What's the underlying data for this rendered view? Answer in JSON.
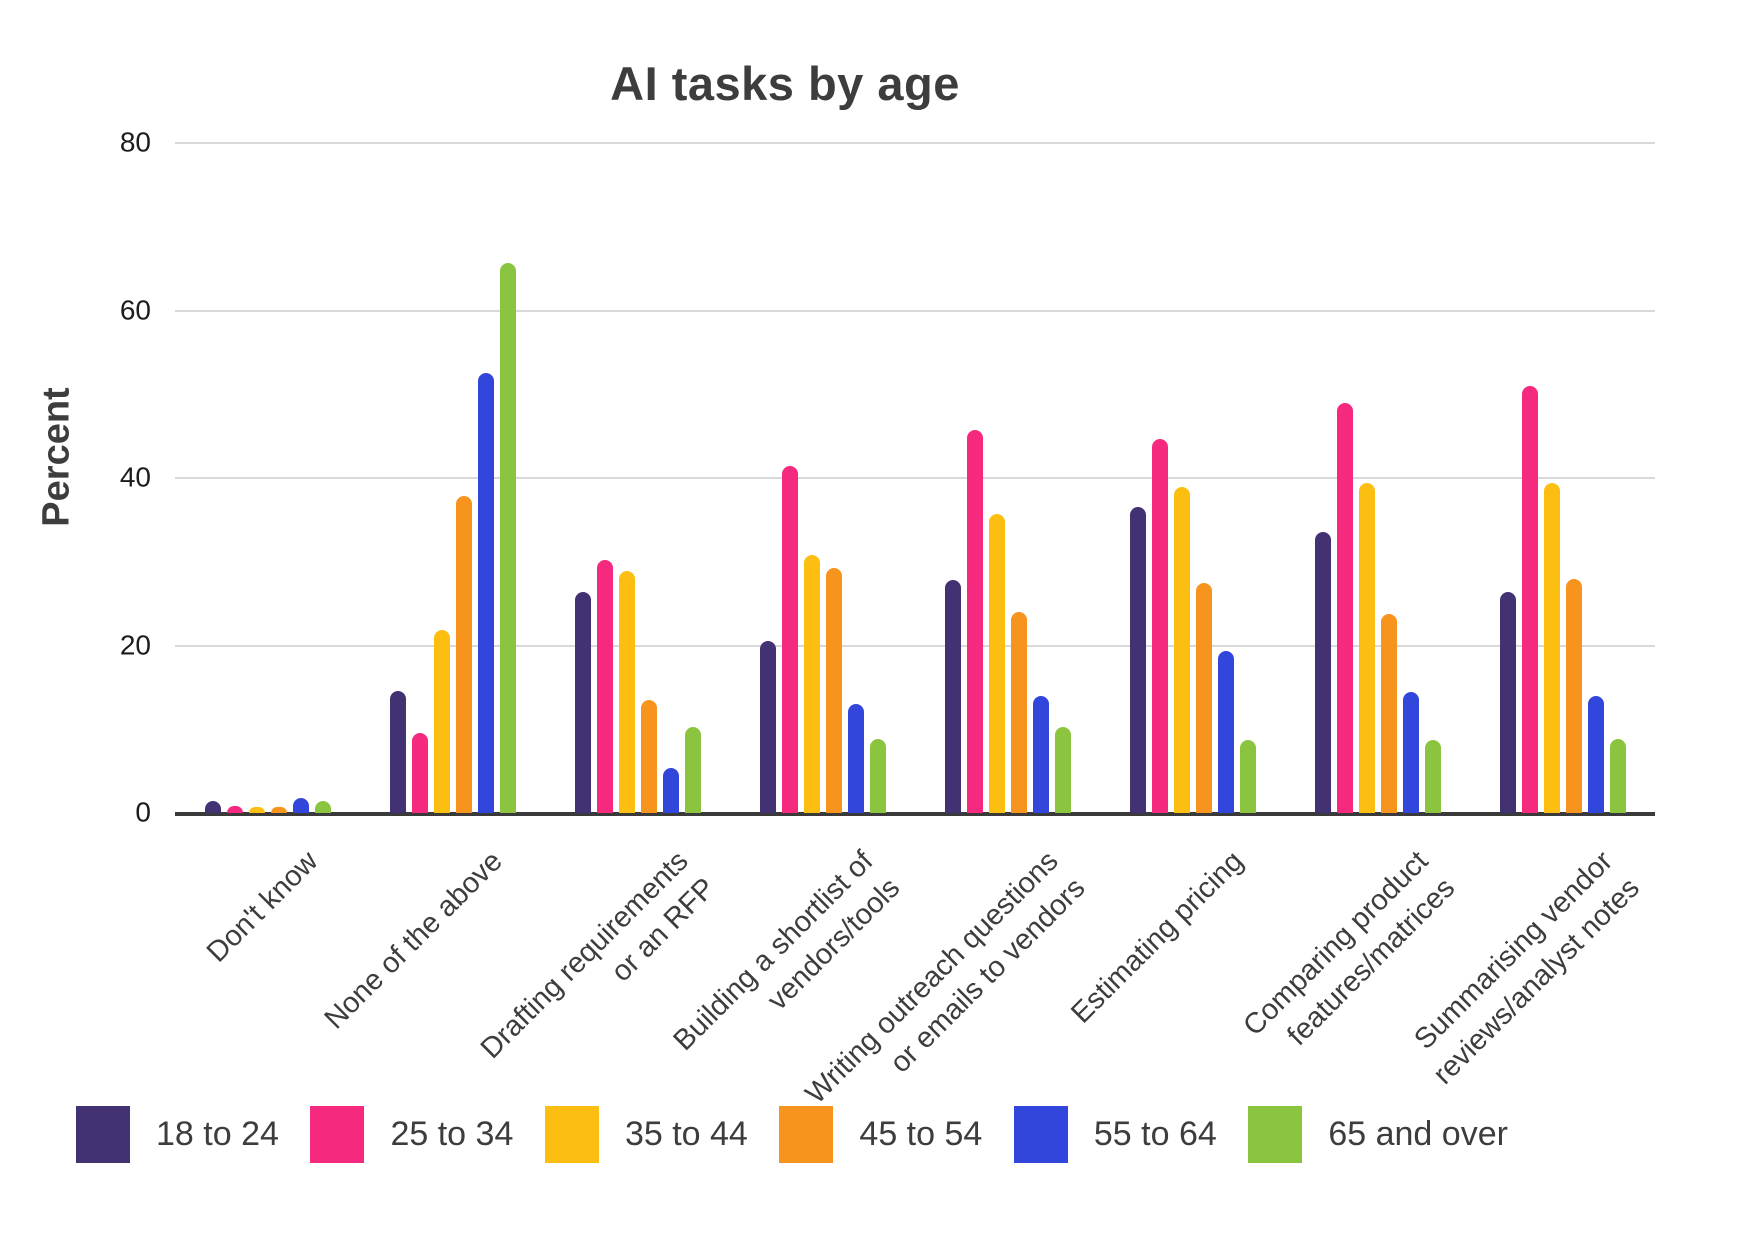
{
  "chart_data": {
    "type": "bar",
    "title": "AI tasks by age",
    "xlabel": "",
    "ylabel": "Percent",
    "ylim": [
      0,
      80
    ],
    "y_ticks": [
      0,
      20,
      40,
      60,
      80
    ],
    "grid": true,
    "legend_position": "bottom",
    "categories": [
      "Don't know",
      "None of the above",
      "Drafting requirements\nor an RFP",
      "Building a shortlist of\nvendors/tools",
      "Writing outreach questions\nor emails to vendors",
      "Estimating pricing",
      "Comparing product\nfeatures/matrices",
      "Summarising vendor\nreviews/analyst notes"
    ],
    "series": [
      {
        "name": "18 to 24",
        "color": "#433273",
        "values": [
          1.4,
          14.6,
          26.4,
          20.5,
          27.8,
          36.5,
          33.6,
          26.4
        ]
      },
      {
        "name": "25 to 34",
        "color": "#F5297E",
        "values": [
          0.8,
          9.6,
          30.2,
          41.4,
          45.7,
          44.7,
          49.0,
          51.0
        ]
      },
      {
        "name": "35 to 44",
        "color": "#FCBF11",
        "values": [
          0.7,
          21.9,
          28.9,
          30.8,
          35.7,
          38.9,
          39.4,
          39.4
        ]
      },
      {
        "name": "45 to 54",
        "color": "#F7941D",
        "values": [
          0.7,
          37.8,
          13.5,
          29.3,
          24.0,
          27.5,
          23.8,
          28.0
        ]
      },
      {
        "name": "55 to 64",
        "color": "#3346DC",
        "values": [
          1.8,
          52.5,
          5.4,
          13.0,
          14.0,
          19.3,
          14.4,
          14.0
        ]
      },
      {
        "name": "65 and over",
        "color": "#8BC53F",
        "values": [
          1.4,
          65.7,
          10.3,
          8.8,
          10.3,
          8.7,
          8.7,
          8.8
        ]
      }
    ],
    "colors": {
      "grid": "#d9d9d9",
      "axis": "#3a3a3a",
      "text": "#3d3d3d"
    }
  }
}
